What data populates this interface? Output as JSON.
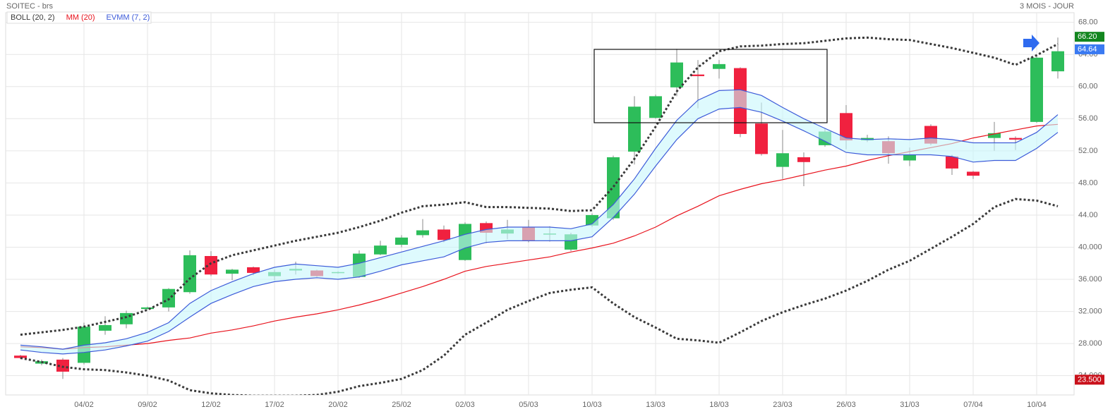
{
  "chart_data": {
    "type": "candlestick",
    "title": "SOITEC - brs",
    "period": "3 MOIS - JOUR",
    "categories": [
      null,
      null,
      null,
      "04/02",
      null,
      null,
      "09/02",
      null,
      null,
      "12/02",
      null,
      null,
      "17/02",
      null,
      null,
      "20/02",
      null,
      null,
      "25/02",
      null,
      null,
      "02/03",
      null,
      null,
      "05/03",
      null,
      null,
      "10/03",
      null,
      null,
      "13/03",
      null,
      null,
      "18/03",
      null,
      null,
      "23/03",
      null,
      null,
      "26/03",
      null,
      null,
      "31/03",
      null,
      null,
      "07/04",
      null,
      null,
      "10/04",
      null
    ],
    "open": [
      26.5,
      25.5,
      26.0,
      25.6,
      29.6,
      30.4,
      32.3,
      32.5,
      34.4,
      38.9,
      36.7,
      37.5,
      36.4,
      37.1,
      37.1,
      36.8,
      36.3,
      39.1,
      40.3,
      41.5,
      42.2,
      38.4,
      43.0,
      41.7,
      42.5,
      41.6,
      39.7,
      42.7,
      43.6,
      51.9,
      56.1,
      59.9,
      61.5,
      62.2,
      62.3,
      55.4,
      50.0,
      51.2,
      52.7,
      56.7,
      53.3,
      53.2,
      50.8,
      55.1,
      51.3,
      49.4,
      53.6,
      53.6,
      55.6,
      61.9
    ],
    "high": [
      26.6,
      26.0,
      26.2,
      30.6,
      31.4,
      32.1,
      32.6,
      34.9,
      39.6,
      39.5,
      37.3,
      37.6,
      37.2,
      38.2,
      37.2,
      37.0,
      39.6,
      40.8,
      41.5,
      43.5,
      42.7,
      43.1,
      43.2,
      43.4,
      43.4,
      42.6,
      41.8,
      44.2,
      51.4,
      58.8,
      59.0,
      64.7,
      63.3,
      63.3,
      62.4,
      58.0,
      54.6,
      51.8,
      54.8,
      57.7,
      54.0,
      53.8,
      52.4,
      55.3,
      51.5,
      49.5,
      55.6,
      53.8,
      63.8,
      66.1
    ],
    "low": [
      26.1,
      25.3,
      23.6,
      25.4,
      29.1,
      29.9,
      32.2,
      32.0,
      34.2,
      36.4,
      35.9,
      36.5,
      35.9,
      36.6,
      36.3,
      36.7,
      36.2,
      39.0,
      40.0,
      41.2,
      40.6,
      38.3,
      40.5,
      41.0,
      40.6,
      40.7,
      39.5,
      42.5,
      43.4,
      50.3,
      56.0,
      58.8,
      57.3,
      61.0,
      53.7,
      51.4,
      48.5,
      47.6,
      52.5,
      52.2,
      53.1,
      50.4,
      50.1,
      52.7,
      49.0,
      48.5,
      52.0,
      52.1,
      55.5,
      61.0
    ],
    "close": [
      26.2,
      25.8,
      24.5,
      30.1,
      30.3,
      31.8,
      32.5,
      34.8,
      39.0,
      36.6,
      37.2,
      36.8,
      36.9,
      37.3,
      36.4,
      36.9,
      39.2,
      40.2,
      41.2,
      42.1,
      40.9,
      42.9,
      41.8,
      42.2,
      40.8,
      41.7,
      41.6,
      44.0,
      51.2,
      57.5,
      58.8,
      63.0,
      61.3,
      62.8,
      54.1,
      51.6,
      51.7,
      50.6,
      54.4,
      53.3,
      53.6,
      51.7,
      51.5,
      52.9,
      49.8,
      48.9,
      54.2,
      53.4,
      63.6,
      64.4
    ],
    "up_color": "#2dbd5a",
    "down_color": "#f0213f",
    "overlays": [
      {
        "name": "BOLL (20, 2)",
        "color": "#3a3a3a",
        "upper": [
          29.1,
          29.4,
          29.7,
          30.1,
          30.7,
          31.3,
          32.2,
          33.5,
          36.1,
          38.0,
          39.0,
          39.6,
          40.2,
          40.8,
          41.3,
          41.8,
          42.5,
          43.3,
          44.3,
          45.1,
          45.3,
          45.6,
          45.0,
          45.0,
          44.9,
          44.8,
          44.5,
          44.6,
          47.5,
          51.0,
          55.0,
          59.4,
          62.4,
          64.4,
          65.0,
          65.1,
          65.3,
          65.4,
          65.7,
          66.0,
          66.1,
          65.9,
          65.8,
          65.3,
          64.8,
          64.2,
          63.6,
          62.7,
          63.9,
          65.3
        ],
        "lower": [
          26.2,
          25.7,
          25.1,
          24.8,
          24.7,
          24.4,
          24.0,
          23.4,
          22.2,
          21.8,
          21.6,
          21.5,
          21.5,
          21.5,
          21.6,
          22.0,
          22.7,
          23.1,
          23.6,
          24.7,
          26.5,
          29.1,
          30.6,
          32.2,
          33.3,
          34.3,
          34.7,
          35.0,
          33.0,
          31.3,
          30.0,
          28.6,
          28.4,
          28.1,
          29.4,
          30.8,
          31.9,
          32.8,
          33.6,
          34.6,
          35.8,
          37.2,
          38.3,
          39.8,
          41.3,
          42.9,
          45.0,
          46.0,
          45.8,
          45.1
        ]
      },
      {
        "name": "MM (20)",
        "color": "#e8121c",
        "values": [
          27.6,
          27.5,
          27.3,
          27.5,
          27.6,
          27.8,
          28.0,
          28.4,
          28.7,
          29.3,
          29.7,
          30.2,
          30.8,
          31.3,
          31.7,
          32.2,
          32.8,
          33.5,
          34.3,
          35.1,
          36.0,
          37.0,
          37.6,
          38.0,
          38.4,
          38.8,
          39.4,
          39.9,
          40.5,
          41.4,
          42.5,
          43.9,
          45.1,
          46.4,
          47.2,
          47.9,
          48.4,
          49.0,
          49.6,
          50.1,
          50.8,
          51.4,
          51.9,
          52.4,
          52.9,
          53.6,
          54.1,
          54.6,
          55.1,
          55.3
        ]
      },
      {
        "name": "EVMM (7, 2)",
        "color": "#3d5bd9",
        "fill": "#c8f7fb",
        "upper": [
          27.8,
          27.6,
          27.3,
          27.8,
          28.1,
          28.6,
          29.4,
          30.6,
          33.0,
          34.6,
          35.7,
          36.7,
          37.5,
          37.9,
          37.7,
          37.5,
          38.0,
          38.7,
          39.4,
          40.1,
          40.8,
          41.6,
          42.2,
          42.5,
          42.5,
          42.5,
          42.3,
          42.9,
          45.3,
          48.5,
          52.3,
          55.8,
          58.3,
          59.5,
          59.6,
          58.9,
          57.4,
          56.0,
          54.8,
          53.6,
          53.4,
          53.5,
          53.4,
          53.6,
          53.4,
          53.0,
          53.0,
          53.0,
          54.3,
          56.5
        ],
        "lower": [
          27.2,
          26.9,
          26.7,
          26.9,
          27.2,
          27.7,
          28.3,
          29.5,
          31.3,
          33.0,
          34.1,
          35.1,
          35.7,
          36.0,
          36.2,
          36.0,
          36.3,
          37.0,
          37.8,
          38.3,
          38.8,
          39.9,
          40.6,
          40.8,
          40.8,
          40.8,
          40.8,
          41.3,
          43.7,
          46.6,
          50.1,
          53.4,
          56.0,
          57.2,
          57.4,
          56.8,
          55.7,
          54.5,
          53.2,
          51.8,
          51.5,
          51.5,
          51.5,
          51.5,
          51.3,
          50.6,
          50.8,
          50.8,
          52.3,
          54.3
        ]
      }
    ],
    "ylim": [
      21.6,
      69.2
    ],
    "yticks": [
      {
        "value": 24,
        "label": "24.000"
      },
      {
        "value": 28,
        "label": "28.000"
      },
      {
        "value": 32,
        "label": "32.000"
      },
      {
        "value": 36,
        "label": "36.000"
      },
      {
        "value": 40,
        "label": "40.000"
      },
      {
        "value": 44,
        "label": "44.00"
      },
      {
        "value": 48,
        "label": "48.00"
      },
      {
        "value": 52,
        "label": "52.00"
      },
      {
        "value": 56,
        "label": "56.00"
      },
      {
        "value": 60,
        "label": "60.00"
      },
      {
        "value": 64,
        "label": "64.00"
      },
      {
        "value": 68,
        "label": "68.00"
      }
    ],
    "price_tags": [
      {
        "value": 66.2,
        "label": "66.20",
        "color": "#13861f"
      },
      {
        "value": 64.64,
        "label": "64.64",
        "color": "#3a7af2"
      },
      {
        "value": 23.5,
        "label": "23.500",
        "color": "#c9111b"
      }
    ],
    "grid": true
  }
}
